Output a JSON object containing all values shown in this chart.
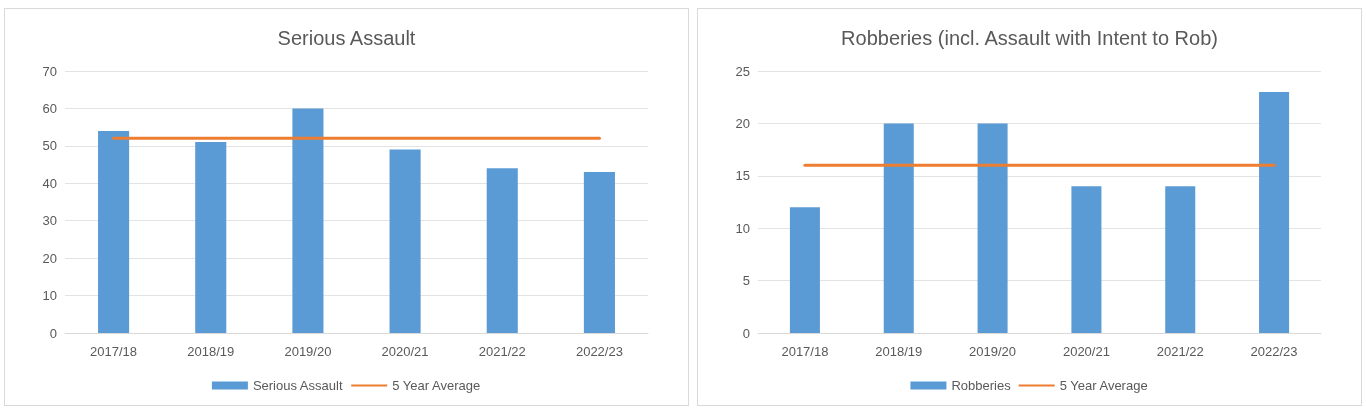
{
  "chart_data": [
    {
      "type": "bar",
      "title": "Serious Assault",
      "categories": [
        "2017/18",
        "2018/19",
        "2019/20",
        "2020/21",
        "2021/22",
        "2022/23"
      ],
      "series": [
        {
          "name": "Serious Assault",
          "color": "#5b9bd5",
          "values": [
            54,
            51,
            60,
            49,
            44,
            43
          ]
        },
        {
          "name": "5 Year Average",
          "type": "line",
          "color": "#ed7d31",
          "values": [
            52,
            52,
            52,
            52,
            52,
            52
          ],
          "marker": "none"
        }
      ],
      "ylim": [
        0,
        70
      ],
      "yticks": [
        0,
        10,
        20,
        30,
        40,
        50,
        60,
        70
      ],
      "grid": "y",
      "legend": "bottom"
    },
    {
      "type": "bar",
      "title": "Robberies (incl. Assault with Intent to Rob)",
      "categories": [
        "2017/18",
        "2018/19",
        "2019/20",
        "2020/21",
        "2021/22",
        "2022/23"
      ],
      "series": [
        {
          "name": "Robberies",
          "color": "#5b9bd5",
          "values": [
            12,
            20,
            20,
            14,
            14,
            23
          ]
        },
        {
          "name": "5 Year Average",
          "type": "line",
          "color": "#ed7d31",
          "values": [
            16,
            16,
            16,
            16,
            16,
            16
          ],
          "marker": "none"
        }
      ],
      "ylim": [
        0,
        25
      ],
      "yticks": [
        0,
        5,
        10,
        15,
        20,
        25
      ],
      "grid": "y",
      "legend": "bottom"
    }
  ]
}
